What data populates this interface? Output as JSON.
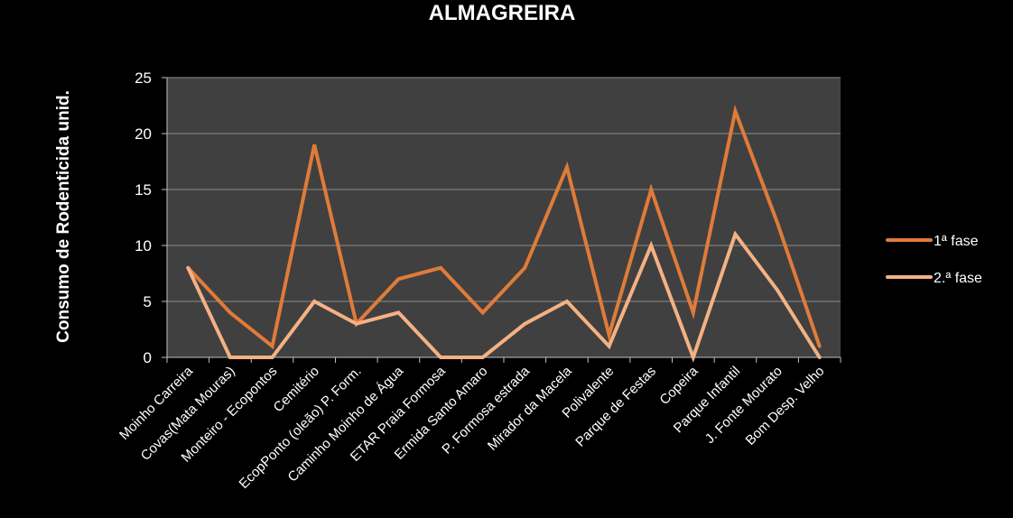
{
  "chart_data": {
    "type": "line",
    "title": "ALMAGREIRA",
    "xlabel": "",
    "ylabel": "Consumo de Rodenticida unid.",
    "ylim": [
      0,
      25
    ],
    "yticks": [
      "0",
      "5",
      "10",
      "15",
      "20",
      "25"
    ],
    "grid": true,
    "legend_position": "right",
    "categories": [
      "Moinho Carreira",
      "Covas(Mata Mouras)",
      "Monteiro - Ecopontos",
      "Cemitério",
      "EcopPonto (oleão) P. Form.",
      "Caminho Moinho de Água",
      "ETAR Praia Formosa",
      "Ermida Santo Amaro",
      "P. Formosa estrada",
      "Mirador da Macela",
      "Polivalente",
      "Parque de Festas",
      "Copeira",
      "Parque Infantil",
      "J. Fonte Mourato",
      "Bom Desp.  Velho"
    ],
    "series": [
      {
        "name": "1ª fase",
        "color": "#E07B39",
        "values": [
          8,
          4,
          1,
          19,
          3,
          7,
          8,
          4,
          8,
          17,
          2,
          15,
          4,
          22,
          12,
          1
        ]
      },
      {
        "name": "2.ª fase",
        "color": "#F4B183",
        "values": [
          8,
          0,
          0,
          5,
          3,
          4,
          0,
          0,
          3,
          5,
          1,
          10,
          0,
          11,
          6,
          0
        ]
      }
    ],
    "colors": {
      "background": "#000000",
      "plot_area": "#404040",
      "gridline": "#8C8C8C",
      "text": "#FFFFFF"
    }
  }
}
